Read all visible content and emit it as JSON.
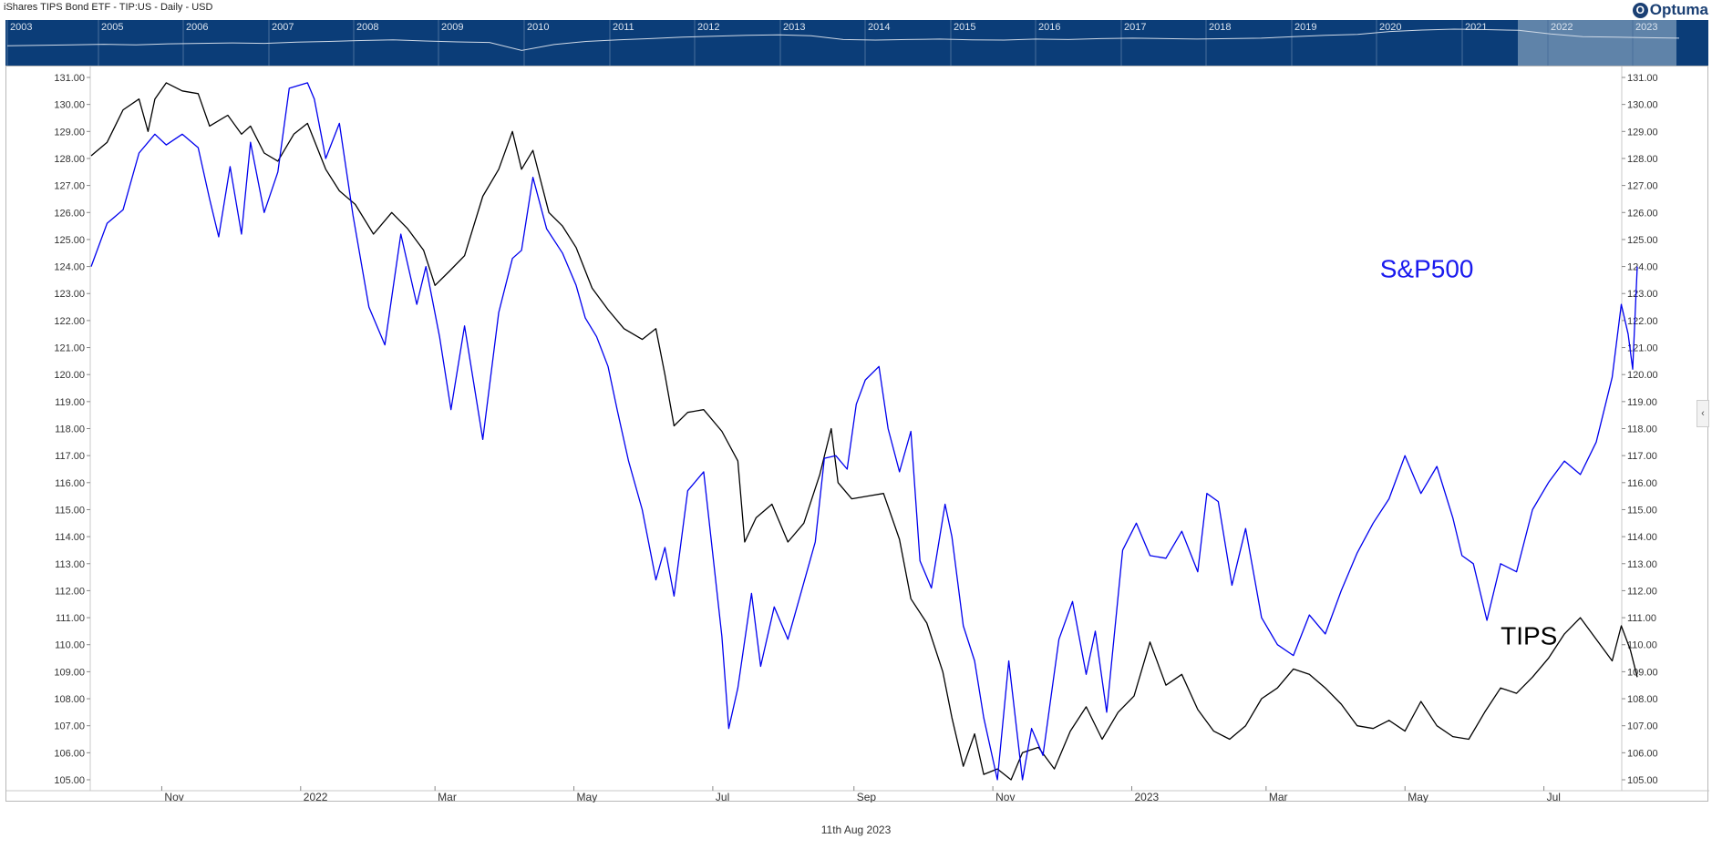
{
  "header": {
    "title": "iShares TIPS Bond ETF - TIP:US - Daily - USD",
    "logo_text": "Optuma",
    "logo_mark": "O"
  },
  "navigator": {
    "background": "#0b3d78",
    "highlight": "#6f8fb2",
    "line_color": "#cfd9e6",
    "years": [
      "2003",
      "2005",
      "2006",
      "2007",
      "2008",
      "2009",
      "2010",
      "2011",
      "2012",
      "2013",
      "2014",
      "2015",
      "2016",
      "2017",
      "2018",
      "2019",
      "2020",
      "2021",
      "2022",
      "2023"
    ],
    "history": [
      0.3,
      0.32,
      0.34,
      0.36,
      0.34,
      0.38,
      0.4,
      0.42,
      0.4,
      0.45,
      0.48,
      0.52,
      0.55,
      0.5,
      0.46,
      0.44,
      0.1,
      0.35,
      0.48,
      0.55,
      0.6,
      0.66,
      0.7,
      0.74,
      0.76,
      0.72,
      0.56,
      0.54,
      0.56,
      0.58,
      0.55,
      0.54,
      0.58,
      0.56,
      0.6,
      0.62,
      0.6,
      0.58,
      0.6,
      0.62,
      0.68,
      0.74,
      0.78,
      0.9,
      0.96,
      1.0,
      0.98,
      0.95,
      0.8,
      0.68,
      0.66,
      0.64,
      0.62
    ]
  },
  "ui": {
    "collapse_glyph": "‹"
  },
  "footer": {
    "date": "11th Aug 2023"
  },
  "chart_data": {
    "type": "line",
    "title": "iShares TIPS Bond ETF - TIP:US - Daily - USD",
    "xlabel": "",
    "ylabel": "",
    "ylim": [
      105,
      131
    ],
    "yticks": [
      105,
      106,
      107,
      108,
      109,
      110,
      111,
      112,
      113,
      114,
      115,
      116,
      117,
      118,
      119,
      120,
      121,
      122,
      123,
      124,
      125,
      126,
      127,
      128,
      129,
      130,
      131
    ],
    "x_range": [
      "2021-10-01",
      "2023-08-11"
    ],
    "xticks": [
      {
        "date": "2021-11-01",
        "label": "Nov"
      },
      {
        "date": "2022-01-01",
        "label": "2022"
      },
      {
        "date": "2022-03-01",
        "label": "Mar"
      },
      {
        "date": "2022-05-01",
        "label": "May"
      },
      {
        "date": "2022-07-01",
        "label": "Jul"
      },
      {
        "date": "2022-09-01",
        "label": "Sep"
      },
      {
        "date": "2022-11-01",
        "label": "Nov"
      },
      {
        "date": "2023-01-01",
        "label": "2023"
      },
      {
        "date": "2023-03-01",
        "label": "Mar"
      },
      {
        "date": "2023-05-01",
        "label": "May"
      },
      {
        "date": "2023-07-01",
        "label": "Jul"
      }
    ],
    "grid": false,
    "series": [
      {
        "name": "TIPS",
        "color": "#000000",
        "label_color": "#000000",
        "label_at": {
          "date": "2023-06-12",
          "value": 110.0
        },
        "points": [
          [
            "2021-10-01",
            128.1
          ],
          [
            "2021-10-08",
            128.6
          ],
          [
            "2021-10-15",
            129.8
          ],
          [
            "2021-10-22",
            130.2
          ],
          [
            "2021-10-26",
            129.0
          ],
          [
            "2021-10-29",
            130.2
          ],
          [
            "2021-11-03",
            130.8
          ],
          [
            "2021-11-10",
            130.5
          ],
          [
            "2021-11-17",
            130.4
          ],
          [
            "2021-11-22",
            129.2
          ],
          [
            "2021-11-30",
            129.6
          ],
          [
            "2021-12-06",
            128.9
          ],
          [
            "2021-12-10",
            129.2
          ],
          [
            "2021-12-16",
            128.2
          ],
          [
            "2021-12-22",
            127.9
          ],
          [
            "2021-12-29",
            128.9
          ],
          [
            "2022-01-04",
            129.3
          ],
          [
            "2022-01-12",
            127.6
          ],
          [
            "2022-01-18",
            126.8
          ],
          [
            "2022-01-25",
            126.3
          ],
          [
            "2022-02-02",
            125.2
          ],
          [
            "2022-02-10",
            126.0
          ],
          [
            "2022-02-17",
            125.4
          ],
          [
            "2022-02-24",
            124.6
          ],
          [
            "2022-03-01",
            123.3
          ],
          [
            "2022-03-07",
            123.8
          ],
          [
            "2022-03-14",
            124.4
          ],
          [
            "2022-03-22",
            126.6
          ],
          [
            "2022-03-29",
            127.6
          ],
          [
            "2022-04-04",
            129.0
          ],
          [
            "2022-04-08",
            127.6
          ],
          [
            "2022-04-13",
            128.3
          ],
          [
            "2022-04-20",
            126.0
          ],
          [
            "2022-04-26",
            125.5
          ],
          [
            "2022-05-02",
            124.7
          ],
          [
            "2022-05-09",
            123.2
          ],
          [
            "2022-05-16",
            122.4
          ],
          [
            "2022-05-23",
            121.7
          ],
          [
            "2022-05-31",
            121.3
          ],
          [
            "2022-06-06",
            121.7
          ],
          [
            "2022-06-10",
            120.0
          ],
          [
            "2022-06-14",
            118.1
          ],
          [
            "2022-06-20",
            118.6
          ],
          [
            "2022-06-27",
            118.7
          ],
          [
            "2022-07-05",
            117.9
          ],
          [
            "2022-07-12",
            116.8
          ],
          [
            "2022-07-15",
            113.8
          ],
          [
            "2022-07-20",
            114.7
          ],
          [
            "2022-07-27",
            115.2
          ],
          [
            "2022-08-03",
            113.8
          ],
          [
            "2022-08-10",
            114.5
          ],
          [
            "2022-08-17",
            116.3
          ],
          [
            "2022-08-22",
            118.0
          ],
          [
            "2022-08-25",
            116.0
          ],
          [
            "2022-08-31",
            115.4
          ],
          [
            "2022-09-07",
            115.5
          ],
          [
            "2022-09-14",
            115.6
          ],
          [
            "2022-09-21",
            113.9
          ],
          [
            "2022-09-26",
            111.7
          ],
          [
            "2022-10-03",
            110.8
          ],
          [
            "2022-10-10",
            109.0
          ],
          [
            "2022-10-14",
            107.3
          ],
          [
            "2022-10-19",
            105.5
          ],
          [
            "2022-10-24",
            106.7
          ],
          [
            "2022-10-28",
            105.2
          ],
          [
            "2022-11-03",
            105.4
          ],
          [
            "2022-11-09",
            105.0
          ],
          [
            "2022-11-14",
            106.0
          ],
          [
            "2022-11-21",
            106.2
          ],
          [
            "2022-11-28",
            105.4
          ],
          [
            "2022-12-05",
            106.8
          ],
          [
            "2022-12-12",
            107.7
          ],
          [
            "2022-12-19",
            106.5
          ],
          [
            "2022-12-26",
            107.5
          ],
          [
            "2023-01-02",
            108.1
          ],
          [
            "2023-01-09",
            110.1
          ],
          [
            "2023-01-16",
            108.5
          ],
          [
            "2023-01-23",
            108.9
          ],
          [
            "2023-01-30",
            107.6
          ],
          [
            "2023-02-06",
            106.8
          ],
          [
            "2023-02-13",
            106.5
          ],
          [
            "2023-02-20",
            107.0
          ],
          [
            "2023-02-27",
            108.0
          ],
          [
            "2023-03-06",
            108.4
          ],
          [
            "2023-03-13",
            109.1
          ],
          [
            "2023-03-20",
            108.9
          ],
          [
            "2023-03-27",
            108.4
          ],
          [
            "2023-04-03",
            107.8
          ],
          [
            "2023-04-10",
            107.0
          ],
          [
            "2023-04-17",
            106.9
          ],
          [
            "2023-04-24",
            107.2
          ],
          [
            "2023-05-01",
            106.8
          ],
          [
            "2023-05-08",
            107.9
          ],
          [
            "2023-05-15",
            107.0
          ],
          [
            "2023-05-22",
            106.6
          ],
          [
            "2023-05-29",
            106.5
          ],
          [
            "2023-06-05",
            107.5
          ],
          [
            "2023-06-12",
            108.4
          ],
          [
            "2023-06-19",
            108.2
          ],
          [
            "2023-06-26",
            108.8
          ],
          [
            "2023-07-03",
            109.5
          ],
          [
            "2023-07-10",
            110.4
          ],
          [
            "2023-07-17",
            111.0
          ],
          [
            "2023-07-24",
            110.2
          ],
          [
            "2023-07-31",
            109.4
          ],
          [
            "2023-08-04",
            110.7
          ],
          [
            "2023-08-08",
            109.8
          ],
          [
            "2023-08-11",
            108.8
          ]
        ]
      },
      {
        "name": "S&P500",
        "color": "#0000ee",
        "label_color": "#1a1aee",
        "label_at": {
          "date": "2023-04-20",
          "value": 123.6
        },
        "points": [
          [
            "2021-10-01",
            124.0
          ],
          [
            "2021-10-08",
            125.6
          ],
          [
            "2021-10-15",
            126.1
          ],
          [
            "2021-10-22",
            128.2
          ],
          [
            "2021-10-29",
            128.9
          ],
          [
            "2021-11-03",
            128.5
          ],
          [
            "2021-11-10",
            128.9
          ],
          [
            "2021-11-17",
            128.4
          ],
          [
            "2021-11-22",
            126.5
          ],
          [
            "2021-11-26",
            125.1
          ],
          [
            "2021-12-01",
            127.7
          ],
          [
            "2021-12-06",
            125.2
          ],
          [
            "2021-12-10",
            128.6
          ],
          [
            "2021-12-16",
            126.0
          ],
          [
            "2021-12-22",
            127.5
          ],
          [
            "2021-12-27",
            130.6
          ],
          [
            "2022-01-04",
            130.8
          ],
          [
            "2022-01-07",
            130.2
          ],
          [
            "2022-01-12",
            128.0
          ],
          [
            "2022-01-18",
            129.3
          ],
          [
            "2022-01-24",
            125.9
          ],
          [
            "2022-01-31",
            122.5
          ],
          [
            "2022-02-07",
            121.1
          ],
          [
            "2022-02-14",
            125.2
          ],
          [
            "2022-02-21",
            122.6
          ],
          [
            "2022-02-25",
            124.0
          ],
          [
            "2022-03-03",
            121.4
          ],
          [
            "2022-03-08",
            118.7
          ],
          [
            "2022-03-14",
            121.8
          ],
          [
            "2022-03-22",
            117.6
          ],
          [
            "2022-03-29",
            122.3
          ],
          [
            "2022-04-04",
            124.3
          ],
          [
            "2022-04-08",
            124.6
          ],
          [
            "2022-04-13",
            127.3
          ],
          [
            "2022-04-19",
            125.4
          ],
          [
            "2022-04-26",
            124.5
          ],
          [
            "2022-05-02",
            123.3
          ],
          [
            "2022-05-06",
            122.1
          ],
          [
            "2022-05-11",
            121.4
          ],
          [
            "2022-05-16",
            120.3
          ],
          [
            "2022-05-20",
            118.7
          ],
          [
            "2022-05-25",
            116.8
          ],
          [
            "2022-05-31",
            115.0
          ],
          [
            "2022-06-06",
            112.4
          ],
          [
            "2022-06-10",
            113.6
          ],
          [
            "2022-06-14",
            111.8
          ],
          [
            "2022-06-20",
            115.7
          ],
          [
            "2022-06-27",
            116.4
          ],
          [
            "2022-07-05",
            110.3
          ],
          [
            "2022-07-08",
            106.9
          ],
          [
            "2022-07-12",
            108.4
          ],
          [
            "2022-07-18",
            111.9
          ],
          [
            "2022-07-22",
            109.2
          ],
          [
            "2022-07-28",
            111.4
          ],
          [
            "2022-08-03",
            110.2
          ],
          [
            "2022-08-09",
            112.0
          ],
          [
            "2022-08-15",
            113.8
          ],
          [
            "2022-08-19",
            116.9
          ],
          [
            "2022-08-24",
            117.0
          ],
          [
            "2022-08-29",
            116.5
          ],
          [
            "2022-09-02",
            118.9
          ],
          [
            "2022-09-06",
            119.8
          ],
          [
            "2022-09-12",
            120.3
          ],
          [
            "2022-09-16",
            118.0
          ],
          [
            "2022-09-21",
            116.4
          ],
          [
            "2022-09-26",
            117.9
          ],
          [
            "2022-09-30",
            113.1
          ],
          [
            "2022-10-05",
            112.1
          ],
          [
            "2022-10-11",
            115.2
          ],
          [
            "2022-10-14",
            114.0
          ],
          [
            "2022-10-19",
            110.7
          ],
          [
            "2022-10-24",
            109.4
          ],
          [
            "2022-10-28",
            107.3
          ],
          [
            "2022-11-03",
            105.0
          ],
          [
            "2022-11-08",
            109.4
          ],
          [
            "2022-11-14",
            105.0
          ],
          [
            "2022-11-18",
            106.9
          ],
          [
            "2022-11-23",
            105.9
          ],
          [
            "2022-11-30",
            110.2
          ],
          [
            "2022-12-06",
            111.6
          ],
          [
            "2022-12-12",
            108.9
          ],
          [
            "2022-12-16",
            110.5
          ],
          [
            "2022-12-21",
            107.5
          ],
          [
            "2022-12-28",
            113.5
          ],
          [
            "2023-01-03",
            114.5
          ],
          [
            "2023-01-09",
            113.3
          ],
          [
            "2023-01-16",
            113.2
          ],
          [
            "2023-01-23",
            114.2
          ],
          [
            "2023-01-30",
            112.7
          ],
          [
            "2023-02-03",
            115.6
          ],
          [
            "2023-02-08",
            115.3
          ],
          [
            "2023-02-14",
            112.2
          ],
          [
            "2023-02-20",
            114.3
          ],
          [
            "2023-02-27",
            111.0
          ],
          [
            "2023-03-06",
            110.0
          ],
          [
            "2023-03-13",
            109.6
          ],
          [
            "2023-03-20",
            111.1
          ],
          [
            "2023-03-27",
            110.4
          ],
          [
            "2023-04-03",
            112.0
          ],
          [
            "2023-04-10",
            113.4
          ],
          [
            "2023-04-17",
            114.5
          ],
          [
            "2023-04-24",
            115.4
          ],
          [
            "2023-05-01",
            117.0
          ],
          [
            "2023-05-08",
            115.6
          ],
          [
            "2023-05-15",
            116.6
          ],
          [
            "2023-05-22",
            114.7
          ],
          [
            "2023-05-26",
            113.3
          ],
          [
            "2023-05-31",
            113.0
          ],
          [
            "2023-06-06",
            110.9
          ],
          [
            "2023-06-12",
            113.0
          ],
          [
            "2023-06-19",
            112.7
          ],
          [
            "2023-06-26",
            115.0
          ],
          [
            "2023-07-03",
            116.0
          ],
          [
            "2023-07-10",
            116.8
          ],
          [
            "2023-07-17",
            116.3
          ],
          [
            "2023-07-24",
            117.5
          ],
          [
            "2023-07-31",
            119.9
          ],
          [
            "2023-08-04",
            122.6
          ],
          [
            "2023-08-07",
            121.5
          ],
          [
            "2023-08-09",
            120.2
          ],
          [
            "2023-08-11",
            124.0
          ]
        ]
      }
    ]
  }
}
